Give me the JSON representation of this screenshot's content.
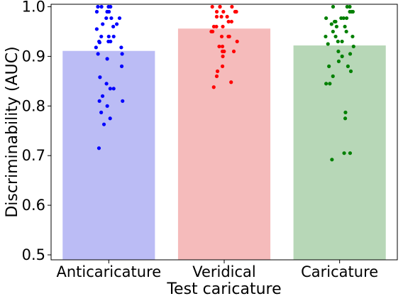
{
  "chart_data": {
    "type": "bar",
    "title": "",
    "xlabel": "Test caricature",
    "ylabel": "Discriminability (AUC)",
    "ylim": [
      0.49,
      1.005
    ],
    "yticks": [
      0.5,
      0.6,
      0.7,
      0.8,
      0.9,
      1.0
    ],
    "ytick_labels": [
      "0.5",
      "0.6",
      "0.7",
      "0.8",
      "0.9",
      "1.0"
    ],
    "grid": false,
    "legend": "none",
    "categories": [
      "Anticaricature",
      "Veridical",
      "Caricature"
    ],
    "values": [
      0.911,
      0.956,
      0.922
    ],
    "bar_colors": [
      "#bbbcf5",
      "#f5bbbb",
      "#b7d7b7"
    ],
    "point_colors": [
      "#0000ff",
      "#ff0000",
      "#008000"
    ],
    "points": [
      [
        1.0,
        1.0,
        1.0,
        1.0,
        0.99,
        0.99,
        0.99,
        0.977,
        0.977,
        0.977,
        0.965,
        0.965,
        0.96,
        0.955,
        0.94,
        0.94,
        0.94,
        0.93,
        0.93,
        0.93,
        0.928,
        0.918,
        0.918,
        0.905,
        0.905,
        0.895,
        0.88,
        0.858,
        0.845,
        0.835,
        0.835,
        0.82,
        0.81,
        0.81,
        0.8,
        0.787,
        0.775,
        0.763,
        0.715
      ],
      [
        1.0,
        1.0,
        1.0,
        1.0,
        0.99,
        0.99,
        0.99,
        0.99,
        0.98,
        0.98,
        0.98,
        0.97,
        0.97,
        0.96,
        0.96,
        0.96,
        0.95,
        0.95,
        0.94,
        0.94,
        0.94,
        0.93,
        0.92,
        0.92,
        0.91,
        0.91,
        0.91,
        0.9,
        0.88,
        0.87,
        0.86,
        0.848,
        0.838
      ],
      [
        1.0,
        1.0,
        1.0,
        0.99,
        0.99,
        0.99,
        0.977,
        0.977,
        0.977,
        0.977,
        0.97,
        0.97,
        0.965,
        0.96,
        0.96,
        0.95,
        0.95,
        0.94,
        0.94,
        0.94,
        0.93,
        0.93,
        0.925,
        0.92,
        0.91,
        0.905,
        0.9,
        0.89,
        0.88,
        0.88,
        0.87,
        0.86,
        0.845,
        0.845,
        0.787,
        0.775,
        0.705,
        0.705,
        0.692
      ]
    ]
  }
}
